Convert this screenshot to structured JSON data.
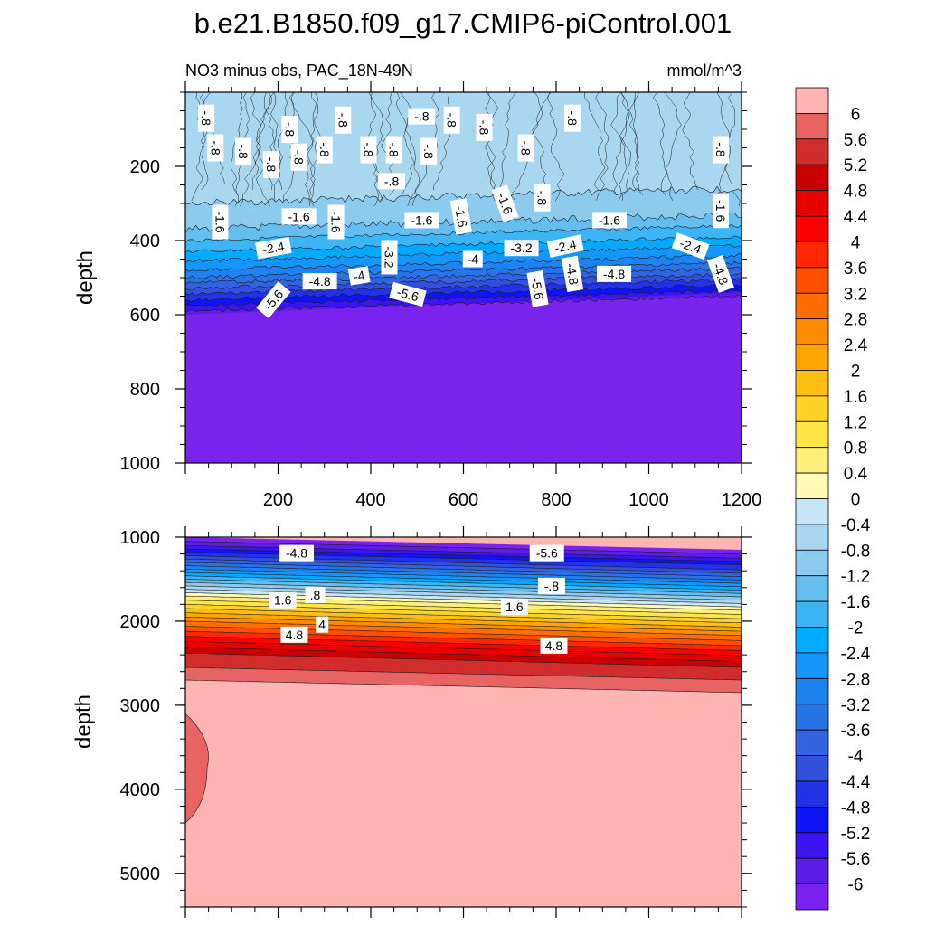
{
  "chart_data": {
    "type": "contour",
    "title": "b.e21.B1850.f09_g17.CMIP6-piControl.001",
    "subtitle": "NO3 minus obs, PAC_18N-49N",
    "units": "mmol/m^3",
    "colorbar": {
      "levels": [
        "6",
        "5.6",
        "5.2",
        "4.8",
        "4.4",
        "4",
        "3.6",
        "3.2",
        "2.8",
        "2.4",
        "2",
        "1.6",
        "1.2",
        "0.8",
        "0.4",
        "0",
        "-0.4",
        "-0.8",
        "-1.2",
        "-1.6",
        "-2",
        "-2.4",
        "-2.8",
        "-3.2",
        "-3.6",
        "-4",
        "-4.4",
        "-4.8",
        "-5.2",
        "-5.6",
        "-6"
      ],
      "colors": [
        "#ffb4b4",
        "#e86464",
        "#d22d2d",
        "#c80000",
        "#e60000",
        "#ff0000",
        "#ff2800",
        "#ff5000",
        "#ff6e00",
        "#ff8c00",
        "#ffa500",
        "#ffbe14",
        "#ffd228",
        "#ffe646",
        "#fff07d",
        "#fffab4",
        "#c8e6f5",
        "#aad7f0",
        "#8ccaee",
        "#64bef0",
        "#3cb4f5",
        "#00aaff",
        "#1496fa",
        "#1e82f0",
        "#2873e6",
        "#3264e1",
        "#3250dc",
        "#2332e6",
        "#0f14f5",
        "#3c14f0",
        "#5a1ee6",
        "#7a22ee"
      ]
    },
    "panels": [
      {
        "id": "upper",
        "xlabel": "",
        "ylabel": "depth",
        "xlim": [
          0,
          1200
        ],
        "ylim": [
          1000,
          0
        ],
        "xticks": [
          "200",
          "400",
          "600",
          "800",
          "1000",
          "1200"
        ],
        "yticks": [
          "200",
          "400",
          "600",
          "800",
          "1000"
        ],
        "contour_labels": [
          {
            "text": "-.8",
            "x": 45,
            "y": 70,
            "rot": 90
          },
          {
            "text": "-.8",
            "x": 65,
            "y": 150,
            "rot": 90
          },
          {
            "text": "-.8",
            "x": 125,
            "y": 160,
            "rot": 90
          },
          {
            "text": "-.8",
            "x": 185,
            "y": 195,
            "rot": 90
          },
          {
            "text": "-.8",
            "x": 225,
            "y": 100,
            "rot": 90
          },
          {
            "text": "-.8",
            "x": 245,
            "y": 175,
            "rot": 90
          },
          {
            "text": "-.8",
            "x": 300,
            "y": 155,
            "rot": 90
          },
          {
            "text": "-.8",
            "x": 340,
            "y": 75,
            "rot": 90
          },
          {
            "text": "-.8",
            "x": 395,
            "y": 155,
            "rot": 90
          },
          {
            "text": "-.8",
            "x": 450,
            "y": 155,
            "rot": 90
          },
          {
            "text": "-.8",
            "x": 510,
            "y": 65,
            "rot": 0
          },
          {
            "text": "-.8",
            "x": 525,
            "y": 160,
            "rot": 90
          },
          {
            "text": "-.8",
            "x": 575,
            "y": 75,
            "rot": 90
          },
          {
            "text": "-.8",
            "x": 645,
            "y": 95,
            "rot": 90
          },
          {
            "text": "-.8",
            "x": 445,
            "y": 240,
            "rot": 0
          },
          {
            "text": "-.8",
            "x": 735,
            "y": 150,
            "rot": 90
          },
          {
            "text": "-.8",
            "x": 770,
            "y": 285,
            "rot": 90
          },
          {
            "text": "-.8",
            "x": 835,
            "y": 70,
            "rot": 90
          },
          {
            "text": "-.8",
            "x": 1155,
            "y": 155,
            "rot": 90
          },
          {
            "text": "-1.6",
            "x": 75,
            "y": 350,
            "rot": 90
          },
          {
            "text": "-1.6",
            "x": 245,
            "y": 335,
            "rot": 0
          },
          {
            "text": "-1.6",
            "x": 325,
            "y": 350,
            "rot": 90
          },
          {
            "text": "-1.6",
            "x": 510,
            "y": 345,
            "rot": 0
          },
          {
            "text": "-1.6",
            "x": 595,
            "y": 335,
            "rot": 80
          },
          {
            "text": "-1.6",
            "x": 690,
            "y": 300,
            "rot": 70
          },
          {
            "text": "-1.6",
            "x": 915,
            "y": 345,
            "rot": 0
          },
          {
            "text": "-1.6",
            "x": 1155,
            "y": 320,
            "rot": 90
          },
          {
            "text": "-2.4",
            "x": 190,
            "y": 420,
            "rot": -10
          },
          {
            "text": "-2.4",
            "x": 820,
            "y": 415,
            "rot": -12
          },
          {
            "text": "-2.4",
            "x": 1090,
            "y": 415,
            "rot": 20
          },
          {
            "text": "-3.2",
            "x": 440,
            "y": 445,
            "rot": 90
          },
          {
            "text": "-3.2",
            "x": 725,
            "y": 420,
            "rot": 0
          },
          {
            "text": "-4",
            "x": 375,
            "y": 495,
            "rot": -10
          },
          {
            "text": "-4",
            "x": 620,
            "y": 450,
            "rot": 0
          },
          {
            "text": "-4.8",
            "x": 290,
            "y": 510,
            "rot": 0
          },
          {
            "text": "-4.8",
            "x": 835,
            "y": 490,
            "rot": 80
          },
          {
            "text": "-4.8",
            "x": 925,
            "y": 490,
            "rot": 0
          },
          {
            "text": "-4.8",
            "x": 1155,
            "y": 490,
            "rot": 70
          },
          {
            "text": "-5.6",
            "x": 190,
            "y": 560,
            "rot": -50
          },
          {
            "text": "-5.6",
            "x": 480,
            "y": 545,
            "rot": 15
          },
          {
            "text": "-5.6",
            "x": 760,
            "y": 530,
            "rot": 80
          }
        ]
      },
      {
        "id": "lower",
        "xlabel": "",
        "ylabel": "depth",
        "xlim": [
          0,
          1200
        ],
        "ylim": [
          5400,
          1000
        ],
        "xticks": [],
        "yticks": [
          "1000",
          "2000",
          "3000",
          "4000",
          "5000"
        ],
        "contour_labels": [
          {
            "text": "-4.8",
            "x": 240,
            "y": 1190,
            "rot": 0
          },
          {
            "text": "-5.6",
            "x": 780,
            "y": 1190,
            "rot": 0
          },
          {
            "text": "-.8",
            "x": 790,
            "y": 1580,
            "rot": 0
          },
          {
            "text": "1.6",
            "x": 210,
            "y": 1750,
            "rot": 0
          },
          {
            "text": ".8",
            "x": 280,
            "y": 1690,
            "rot": 0
          },
          {
            "text": "1.6",
            "x": 710,
            "y": 1830,
            "rot": 0
          },
          {
            "text": "4",
            "x": 295,
            "y": 2040,
            "rot": 0
          },
          {
            "text": "4.8",
            "x": 235,
            "y": 2160,
            "rot": 0
          },
          {
            "text": "4.8",
            "x": 795,
            "y": 2290,
            "rot": 0
          }
        ]
      }
    ]
  }
}
